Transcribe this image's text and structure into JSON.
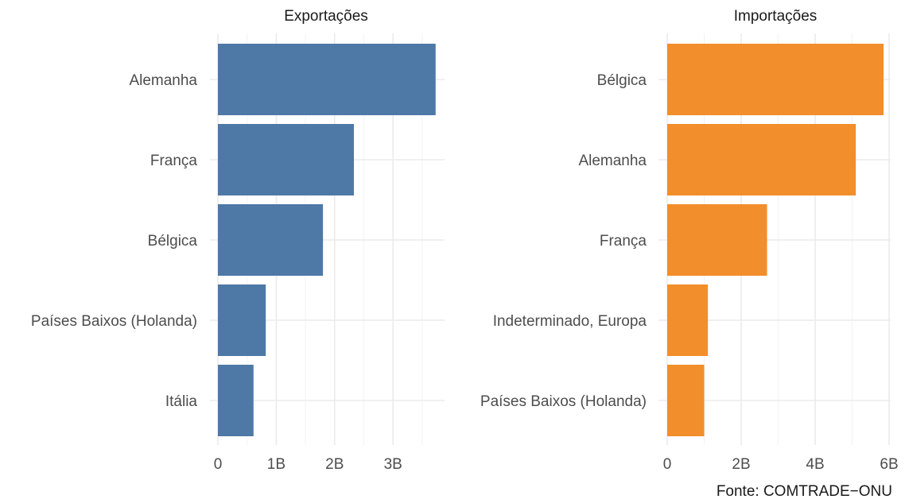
{
  "chart_data": [
    {
      "type": "bar",
      "orientation": "horizontal",
      "title": "Exportações",
      "categories": [
        "Alemanha",
        "França",
        "Bélgica",
        "Países Baixos (Holanda)",
        "Itália"
      ],
      "values": [
        3.73,
        2.33,
        1.8,
        0.82,
        0.61
      ],
      "unit": "B",
      "xlim": [
        0,
        3.8
      ],
      "ticks": [
        0,
        1,
        2,
        3
      ],
      "tick_labels": [
        "0",
        "1B",
        "2B",
        "3B"
      ],
      "grid": true,
      "bar_color": "#4e79a7"
    },
    {
      "type": "bar",
      "orientation": "horizontal",
      "title": "Importações",
      "categories": [
        "Bélgica",
        "Alemanha",
        "França",
        "Indeterminado, Europa",
        "Países Baixos (Holanda)"
      ],
      "values": [
        5.85,
        5.1,
        2.7,
        1.1,
        1.0
      ],
      "unit": "B",
      "xlim": [
        0,
        6.0
      ],
      "ticks": [
        0,
        2,
        4,
        6
      ],
      "tick_labels": [
        "0",
        "2B",
        "4B",
        "6B"
      ],
      "grid": true,
      "bar_color": "#f28e2b"
    }
  ],
  "caption": "Fonte: COMTRADE−ONU"
}
